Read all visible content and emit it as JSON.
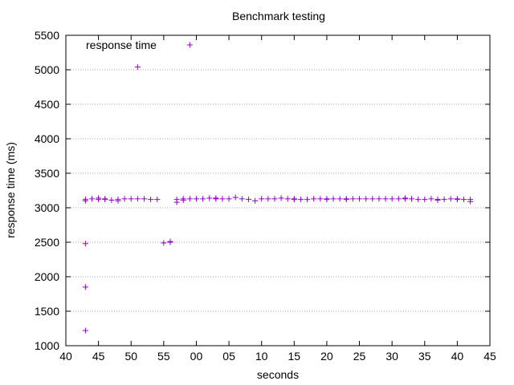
{
  "chart_data": {
    "type": "scatter",
    "title": "Benchmark testing",
    "xlabel": "seconds",
    "ylabel": "response time (ms)",
    "xlim": [
      40,
      105
    ],
    "ylim": [
      1000,
      5500
    ],
    "grid": true,
    "legend_position": "top-left",
    "marker": "+",
    "series_color": "#9400d3",
    "x_ticks": [
      {
        "value": 40,
        "label": "40"
      },
      {
        "value": 45,
        "label": "45"
      },
      {
        "value": 50,
        "label": "50"
      },
      {
        "value": 55,
        "label": "55"
      },
      {
        "value": 60,
        "label": "00"
      },
      {
        "value": 65,
        "label": "05"
      },
      {
        "value": 70,
        "label": "10"
      },
      {
        "value": 75,
        "label": "15"
      },
      {
        "value": 80,
        "label": "20"
      },
      {
        "value": 85,
        "label": "25"
      },
      {
        "value": 90,
        "label": "30"
      },
      {
        "value": 95,
        "label": "35"
      },
      {
        "value": 100,
        "label": "40"
      },
      {
        "value": 105,
        "label": "45"
      }
    ],
    "y_ticks": [
      {
        "value": 1000,
        "label": "1000"
      },
      {
        "value": 1500,
        "label": "1500"
      },
      {
        "value": 2000,
        "label": "2000"
      },
      {
        "value": 2500,
        "label": "2500"
      },
      {
        "value": 3000,
        "label": "3000"
      },
      {
        "value": 3500,
        "label": "3500"
      },
      {
        "value": 4000,
        "label": "4000"
      },
      {
        "value": 4500,
        "label": "4500"
      },
      {
        "value": 5000,
        "label": "5000"
      },
      {
        "value": 5500,
        "label": "5500"
      }
    ],
    "series": [
      {
        "name": "response time",
        "points": [
          [
            43,
            1220
          ],
          [
            43,
            1850
          ],
          [
            43,
            2480
          ],
          [
            43,
            3100
          ],
          [
            43,
            3120
          ],
          [
            44,
            3130
          ],
          [
            45,
            3140
          ],
          [
            45,
            3120
          ],
          [
            46,
            3130
          ],
          [
            46,
            3120
          ],
          [
            47,
            3110
          ],
          [
            48,
            3100
          ],
          [
            48,
            3120
          ],
          [
            49,
            3130
          ],
          [
            50,
            3130
          ],
          [
            51,
            3130
          ],
          [
            51,
            5040
          ],
          [
            52,
            3130
          ],
          [
            53,
            3120
          ],
          [
            54,
            3120
          ],
          [
            55,
            2490
          ],
          [
            56,
            2500
          ],
          [
            56,
            2510
          ],
          [
            57,
            3080
          ],
          [
            57,
            3120
          ],
          [
            58,
            3110
          ],
          [
            58,
            3130
          ],
          [
            59,
            3130
          ],
          [
            59,
            5360
          ],
          [
            60,
            3130
          ],
          [
            61,
            3130
          ],
          [
            62,
            3140
          ],
          [
            63,
            3130
          ],
          [
            63,
            3140
          ],
          [
            64,
            3130
          ],
          [
            65,
            3130
          ],
          [
            66,
            3150
          ],
          [
            67,
            3130
          ],
          [
            68,
            3120
          ],
          [
            69,
            3100
          ],
          [
            70,
            3130
          ],
          [
            71,
            3130
          ],
          [
            72,
            3130
          ],
          [
            73,
            3140
          ],
          [
            74,
            3130
          ],
          [
            75,
            3120
          ],
          [
            75,
            3130
          ],
          [
            76,
            3120
          ],
          [
            77,
            3120
          ],
          [
            78,
            3130
          ],
          [
            79,
            3130
          ],
          [
            80,
            3120
          ],
          [
            80,
            3130
          ],
          [
            81,
            3130
          ],
          [
            82,
            3130
          ],
          [
            83,
            3120
          ],
          [
            83,
            3130
          ],
          [
            84,
            3130
          ],
          [
            85,
            3130
          ],
          [
            86,
            3130
          ],
          [
            87,
            3130
          ],
          [
            88,
            3130
          ],
          [
            89,
            3130
          ],
          [
            90,
            3130
          ],
          [
            91,
            3130
          ],
          [
            92,
            3130
          ],
          [
            92,
            3140
          ],
          [
            93,
            3130
          ],
          [
            94,
            3120
          ],
          [
            95,
            3120
          ],
          [
            96,
            3130
          ],
          [
            97,
            3110
          ],
          [
            97,
            3120
          ],
          [
            98,
            3120
          ],
          [
            99,
            3130
          ],
          [
            100,
            3120
          ],
          [
            100,
            3130
          ],
          [
            101,
            3120
          ],
          [
            102,
            3090
          ],
          [
            102,
            3120
          ]
        ]
      }
    ]
  }
}
